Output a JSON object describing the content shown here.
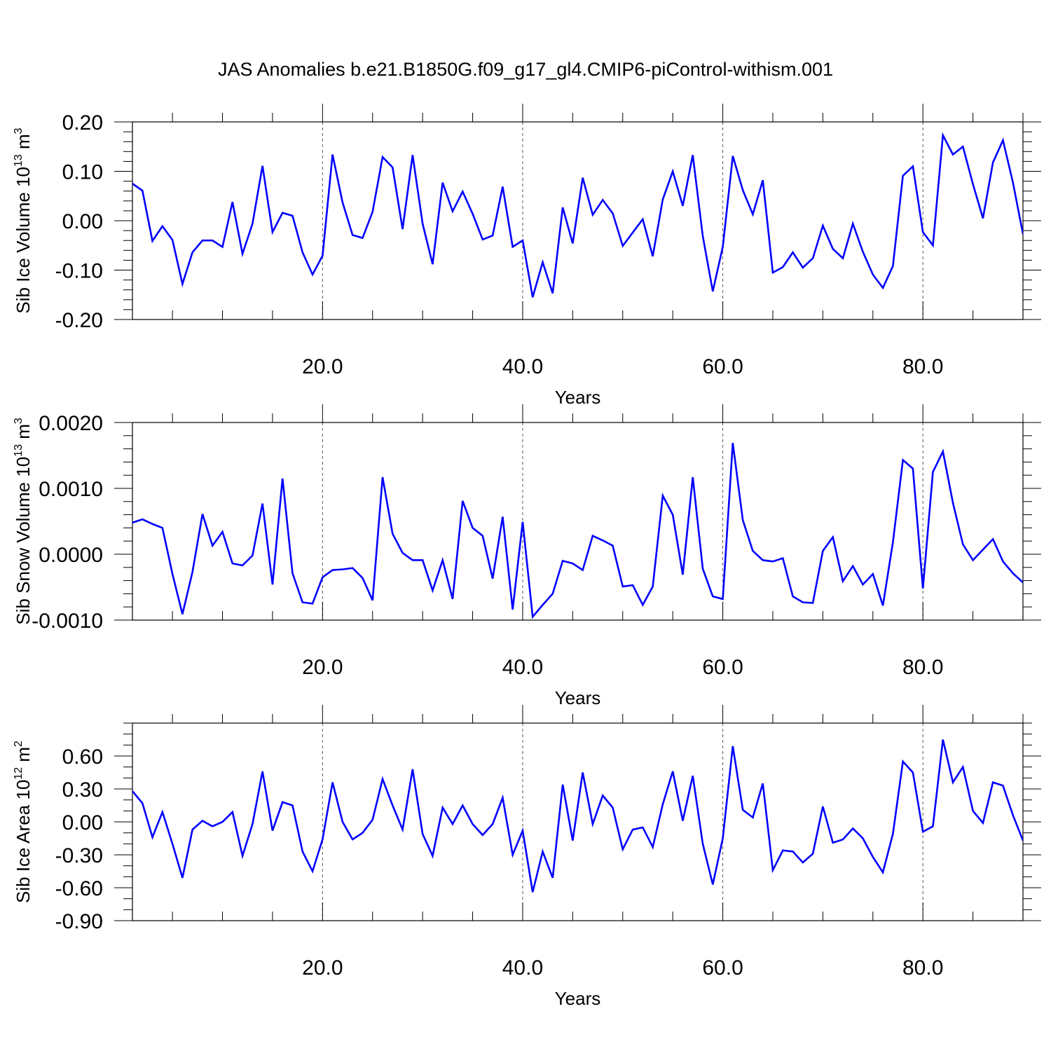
{
  "page_title": "JAS Anomalies b.e21.B1850G.f09_g17_gl4.CMIP6-piControl-withism.001",
  "line_color": "#0000ff",
  "chart_data": [
    {
      "type": "line",
      "title": "",
      "xlabel": "Years",
      "ylabel": "Sib Ice Volume 10",
      "ylabel_exp": "13",
      "ylabel_unit": " m",
      "ylabel_unit_exp": "3",
      "xlim": [
        1,
        90
      ],
      "ylim": [
        -0.2,
        0.2
      ],
      "x_ticks": [
        20,
        40,
        60,
        80
      ],
      "x_tick_labels": [
        "20.0",
        "40.0",
        "60.0",
        "80.0"
      ],
      "y_ticks": [
        -0.2,
        -0.1,
        0.0,
        0.1,
        0.2
      ],
      "y_tick_labels": [
        "-0.20",
        "-0.10",
        "0.00",
        "0.10",
        "0.20"
      ],
      "grid": "vertical dashed at major x ticks",
      "series": [
        {
          "values": [
            0.075,
            0.061,
            -0.041,
            -0.011,
            -0.039,
            -0.128,
            -0.064,
            -0.04,
            -0.04,
            -0.053,
            0.038,
            -0.067,
            -0.006,
            0.111,
            -0.023,
            0.016,
            0.01,
            -0.064,
            -0.109,
            -0.071,
            0.134,
            0.037,
            -0.029,
            -0.035,
            0.018,
            0.129,
            0.108,
            -0.017,
            0.133,
            -0.006,
            -0.088,
            0.077,
            0.019,
            0.059,
            0.014,
            -0.038,
            -0.03,
            0.069,
            -0.053,
            -0.04,
            -0.155,
            -0.084,
            -0.147,
            0.027,
            -0.046,
            0.087,
            0.012,
            0.042,
            0.015,
            -0.051,
            -0.024,
            0.003,
            -0.072,
            0.043,
            0.1,
            0.03,
            0.133,
            -0.031,
            -0.143,
            -0.053,
            0.131,
            0.062,
            0.013,
            0.082,
            -0.105,
            -0.094,
            -0.064,
            -0.095,
            -0.076,
            -0.01,
            -0.057,
            -0.076,
            -0.006,
            -0.063,
            -0.109,
            -0.136,
            -0.092,
            0.091,
            0.11,
            -0.023,
            -0.05,
            0.173,
            0.134,
            0.15,
            0.074,
            0.005,
            0.118,
            0.163,
            0.077,
            -0.027
          ]
        }
      ]
    },
    {
      "type": "line",
      "title": "",
      "xlabel": "Years",
      "ylabel": "Sib Snow Volume 10",
      "ylabel_exp": "13",
      "ylabel_unit": " m",
      "ylabel_unit_exp": "3",
      "xlim": [
        1,
        90
      ],
      "ylim": [
        -0.001,
        0.002
      ],
      "x_ticks": [
        20,
        40,
        60,
        80
      ],
      "x_tick_labels": [
        "20.0",
        "40.0",
        "60.0",
        "80.0"
      ],
      "y_ticks": [
        -0.001,
        0.0,
        0.001,
        0.002
      ],
      "y_tick_labels": [
        "-0.0010",
        "0.0000",
        "0.0010",
        "0.0020"
      ],
      "grid": "vertical dashed at major x ticks",
      "series": [
        {
          "values": [
            0.00048,
            0.00053,
            0.00046,
            0.0004,
            -0.0003,
            -0.00091,
            -0.00027,
            0.00061,
            0.00013,
            0.00034,
            -0.00014,
            -0.00017,
            -2e-05,
            0.00077,
            -0.00046,
            0.00115,
            -0.00029,
            -0.00073,
            -0.00075,
            -0.00035,
            -0.00024,
            -0.00023,
            -0.00021,
            -0.00036,
            -0.0007,
            0.00117,
            0.00031,
            2e-05,
            -9e-05,
            -9e-05,
            -0.00055,
            -9e-05,
            -0.00068,
            0.00081,
            0.0004,
            0.00028,
            -0.00037,
            0.00057,
            -0.00084,
            0.00049,
            -0.00095,
            -0.00077,
            -0.0006,
            -0.0001,
            -0.00014,
            -0.00024,
            0.00028,
            0.00021,
            0.00013,
            -0.00049,
            -0.00047,
            -0.00077,
            -0.00049,
            0.00089,
            0.0006,
            -0.00031,
            0.00117,
            -0.00022,
            -0.00064,
            -0.00068,
            0.00169,
            0.00052,
            5e-05,
            -9e-05,
            -0.00011,
            -6e-05,
            -0.00064,
            -0.00073,
            -0.00074,
            5e-05,
            0.00026,
            -0.00041,
            -0.00018,
            -0.00046,
            -0.0003,
            -0.00078,
            0.00018,
            0.00143,
            0.0013,
            -0.00052,
            0.00125,
            0.00156,
            0.00078,
            0.00015,
            -9e-05,
            7e-05,
            0.00023,
            -0.00011,
            -0.00029,
            -0.00043
          ]
        }
      ]
    },
    {
      "type": "line",
      "title": "",
      "xlabel": "Years",
      "ylabel": "Sib Ice Area 10",
      "ylabel_exp": "12",
      "ylabel_unit": " m",
      "ylabel_unit_exp": "2",
      "xlim": [
        1,
        90
      ],
      "ylim": [
        -0.9,
        0.9
      ],
      "x_ticks": [
        20,
        40,
        60,
        80
      ],
      "x_tick_labels": [
        "20.0",
        "40.0",
        "60.0",
        "80.0"
      ],
      "y_ticks": [
        -0.9,
        -0.6,
        -0.3,
        0.0,
        0.3,
        0.6
      ],
      "y_tick_labels": [
        "-0.90",
        "-0.60",
        "-0.30",
        "0.00",
        "0.30",
        "0.60"
      ],
      "grid": "vertical dashed at major x ticks",
      "series": [
        {
          "values": [
            0.28,
            0.17,
            -0.14,
            0.09,
            -0.2,
            -0.51,
            -0.07,
            0.01,
            -0.04,
            0.0,
            0.09,
            -0.31,
            -0.02,
            0.46,
            -0.08,
            0.18,
            0.15,
            -0.27,
            -0.45,
            -0.16,
            0.36,
            0.0,
            -0.16,
            -0.1,
            0.02,
            0.39,
            0.15,
            -0.07,
            0.48,
            -0.11,
            -0.31,
            0.13,
            -0.02,
            0.15,
            -0.02,
            -0.12,
            -0.02,
            0.22,
            -0.3,
            -0.08,
            -0.64,
            -0.27,
            -0.51,
            0.34,
            -0.17,
            0.45,
            -0.02,
            0.24,
            0.13,
            -0.25,
            -0.07,
            -0.05,
            -0.23,
            0.16,
            0.46,
            0.01,
            0.42,
            -0.2,
            -0.57,
            -0.15,
            0.69,
            0.11,
            0.04,
            0.35,
            -0.44,
            -0.26,
            -0.27,
            -0.37,
            -0.29,
            0.14,
            -0.19,
            -0.16,
            -0.06,
            -0.15,
            -0.32,
            -0.46,
            -0.11,
            0.55,
            0.45,
            -0.09,
            -0.04,
            0.75,
            0.36,
            0.5,
            0.1,
            -0.01,
            0.36,
            0.33,
            0.06,
            -0.17
          ]
        }
      ]
    }
  ]
}
